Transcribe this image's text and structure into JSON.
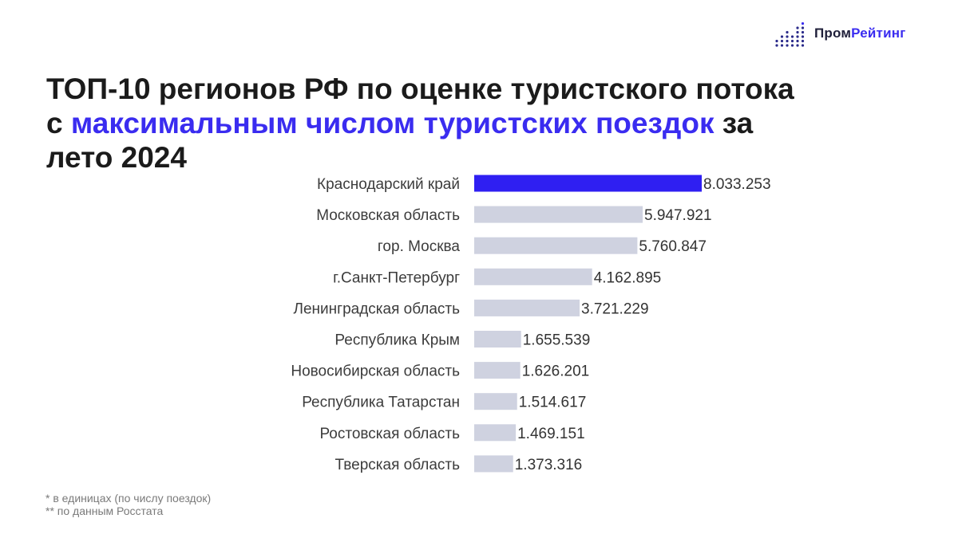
{
  "brand": {
    "part1": "Пром",
    "part2": "Рейтинг"
  },
  "title": {
    "line1": "ТОП-10 регионов РФ по оценке туристского потока",
    "line2_prefix": "с ",
    "line2_highlight": "максимальным числом туристских поездок",
    "line2_suffix": " за",
    "line3": "лето 2024"
  },
  "colors": {
    "highlight_bar": "#2f1ff2",
    "bar": "#cfd2e0",
    "accent": "#3a2cf0"
  },
  "chart_data": {
    "type": "bar",
    "orientation": "horizontal",
    "categories": [
      "Краснодарский край",
      "Московская область",
      "гор. Москва",
      "г.Санкт-Петербург",
      "Ленинградская область",
      "Республика Крым",
      "Новосибирская область",
      "Республика Татарстан",
      "Ростовская область",
      "Тверская область"
    ],
    "values": [
      8033253,
      5947921,
      5760847,
      4162895,
      3721229,
      1655539,
      1626201,
      1514617,
      1469151,
      1373316
    ],
    "value_labels": [
      "8.033.253",
      "5.947.921",
      "5.760.847",
      "4.162.895",
      "3.721.229",
      "1.655.539",
      "1.626.201",
      "1.514.617",
      "1.469.151",
      "1.373.316"
    ],
    "highlight_index": 0,
    "title": "",
    "xlabel": "",
    "ylabel": ""
  },
  "footnotes": {
    "note1": "* в единицах (по числу поездок)",
    "note2": "** по данным Росстата"
  }
}
